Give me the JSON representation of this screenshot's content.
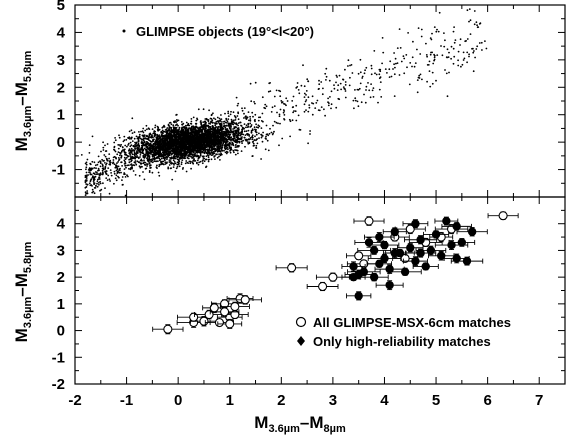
{
  "chart_data": [
    {
      "type": "scatter",
      "panel": "top",
      "legend": [
        {
          "marker": "dot",
          "label": "GLIMPSE objects (19°<l<20°)"
        }
      ],
      "legend_position": "top-left",
      "ylabel_main": "M",
      "ylabel_sub1": "3.6µm",
      "ylabel_dash": "–M",
      "ylabel_sub2": "5.8µm",
      "xlim": [
        -2,
        7.5
      ],
      "ylim": [
        -2,
        5
      ],
      "yticks": [
        "-1",
        "0",
        "1",
        "2",
        "3",
        "4",
        "5"
      ],
      "grid": false,
      "density_model": {
        "description_values": "dense cluster centered near (0.2, 0.0) with spread 0.5 x 0.3; sparse tail along y = 0.65x - 0.1 up to x = 6",
        "core_center": [
          0.2,
          0.0
        ],
        "tail_slope": 0.65,
        "tail_intercept": -0.1,
        "tail_xmax": 6.0
      }
    },
    {
      "type": "scatter",
      "panel": "bottom",
      "legend": [
        {
          "marker": "open-circle",
          "label": "All GLIMPSE-MSX-6cm matches"
        },
        {
          "marker": "filled-diamond",
          "label": "Only high-reliability matches"
        }
      ],
      "legend_position": "bottom-right",
      "xlabel_main": "M",
      "xlabel_sub1": "3.6µm",
      "xlabel_dash": "–M",
      "xlabel_sub2": "8µm",
      "ylabel_main": "M",
      "ylabel_sub1": "3.6µm",
      "ylabel_dash": "–M",
      "ylabel_sub2": "5.8µm",
      "xlim": [
        -2,
        7.5
      ],
      "ylim": [
        -2,
        5
      ],
      "xticks": [
        "-2",
        "-1",
        "0",
        "1",
        "2",
        "3",
        "4",
        "5",
        "6",
        "7"
      ],
      "yticks": [
        "-2",
        "-1",
        "0",
        "1",
        "2",
        "3",
        "4"
      ],
      "grid": false,
      "series": [
        {
          "name": "All GLIMPSE-MSX-6cm matches",
          "marker": "open-circle",
          "points": [
            [
              -0.2,
              0.05
            ],
            [
              0.3,
              0.3
            ],
            [
              0.3,
              0.5
            ],
            [
              0.5,
              0.35
            ],
            [
              0.6,
              0.6
            ],
            [
              0.7,
              0.85
            ],
            [
              0.8,
              0.3
            ],
            [
              0.9,
              1.0
            ],
            [
              1.0,
              0.5
            ],
            [
              1.0,
              0.25
            ],
            [
              1.1,
              0.9
            ],
            [
              1.2,
              1.2
            ],
            [
              1.3,
              1.15
            ],
            [
              1.1,
              0.6
            ],
            [
              0.9,
              0.7
            ],
            [
              2.2,
              2.35
            ],
            [
              2.8,
              1.65
            ],
            [
              3.0,
              2.0
            ],
            [
              3.5,
              2.8
            ],
            [
              3.7,
              4.1
            ],
            [
              3.6,
              2.5
            ],
            [
              4.2,
              3.5
            ],
            [
              4.4,
              2.7
            ],
            [
              4.5,
              3.8
            ],
            [
              4.8,
              3.3
            ],
            [
              5.1,
              3.5
            ],
            [
              5.3,
              3.8
            ],
            [
              6.3,
              4.3
            ]
          ]
        },
        {
          "name": "Only high-reliability matches",
          "marker": "filled-diamond",
          "points": [
            [
              3.4,
              2.0
            ],
            [
              3.4,
              2.4
            ],
            [
              3.5,
              1.3
            ],
            [
              3.5,
              2.1
            ],
            [
              3.6,
              2.2
            ],
            [
              3.8,
              2.0
            ],
            [
              3.8,
              3.0
            ],
            [
              3.9,
              2.5
            ],
            [
              3.9,
              3.5
            ],
            [
              4.0,
              2.7
            ],
            [
              4.0,
              3.2
            ],
            [
              4.1,
              1.7
            ],
            [
              4.1,
              2.3
            ],
            [
              4.2,
              3.7
            ],
            [
              4.3,
              2.9
            ],
            [
              4.4,
              2.2
            ],
            [
              4.5,
              3.1
            ],
            [
              4.6,
              2.6
            ],
            [
              4.6,
              4.0
            ],
            [
              4.7,
              3.4
            ],
            [
              4.8,
              2.4
            ],
            [
              4.9,
              3.0
            ],
            [
              5.0,
              3.6
            ],
            [
              5.1,
              2.8
            ],
            [
              5.2,
              4.1
            ],
            [
              5.3,
              3.2
            ],
            [
              5.4,
              2.7
            ],
            [
              5.4,
              3.9
            ],
            [
              5.5,
              3.3
            ],
            [
              5.6,
              2.6
            ],
            [
              5.7,
              3.7
            ],
            [
              3.7,
              3.3
            ],
            [
              4.2,
              2.9
            ],
            [
              4.7,
              2.9
            ]
          ]
        }
      ]
    }
  ]
}
